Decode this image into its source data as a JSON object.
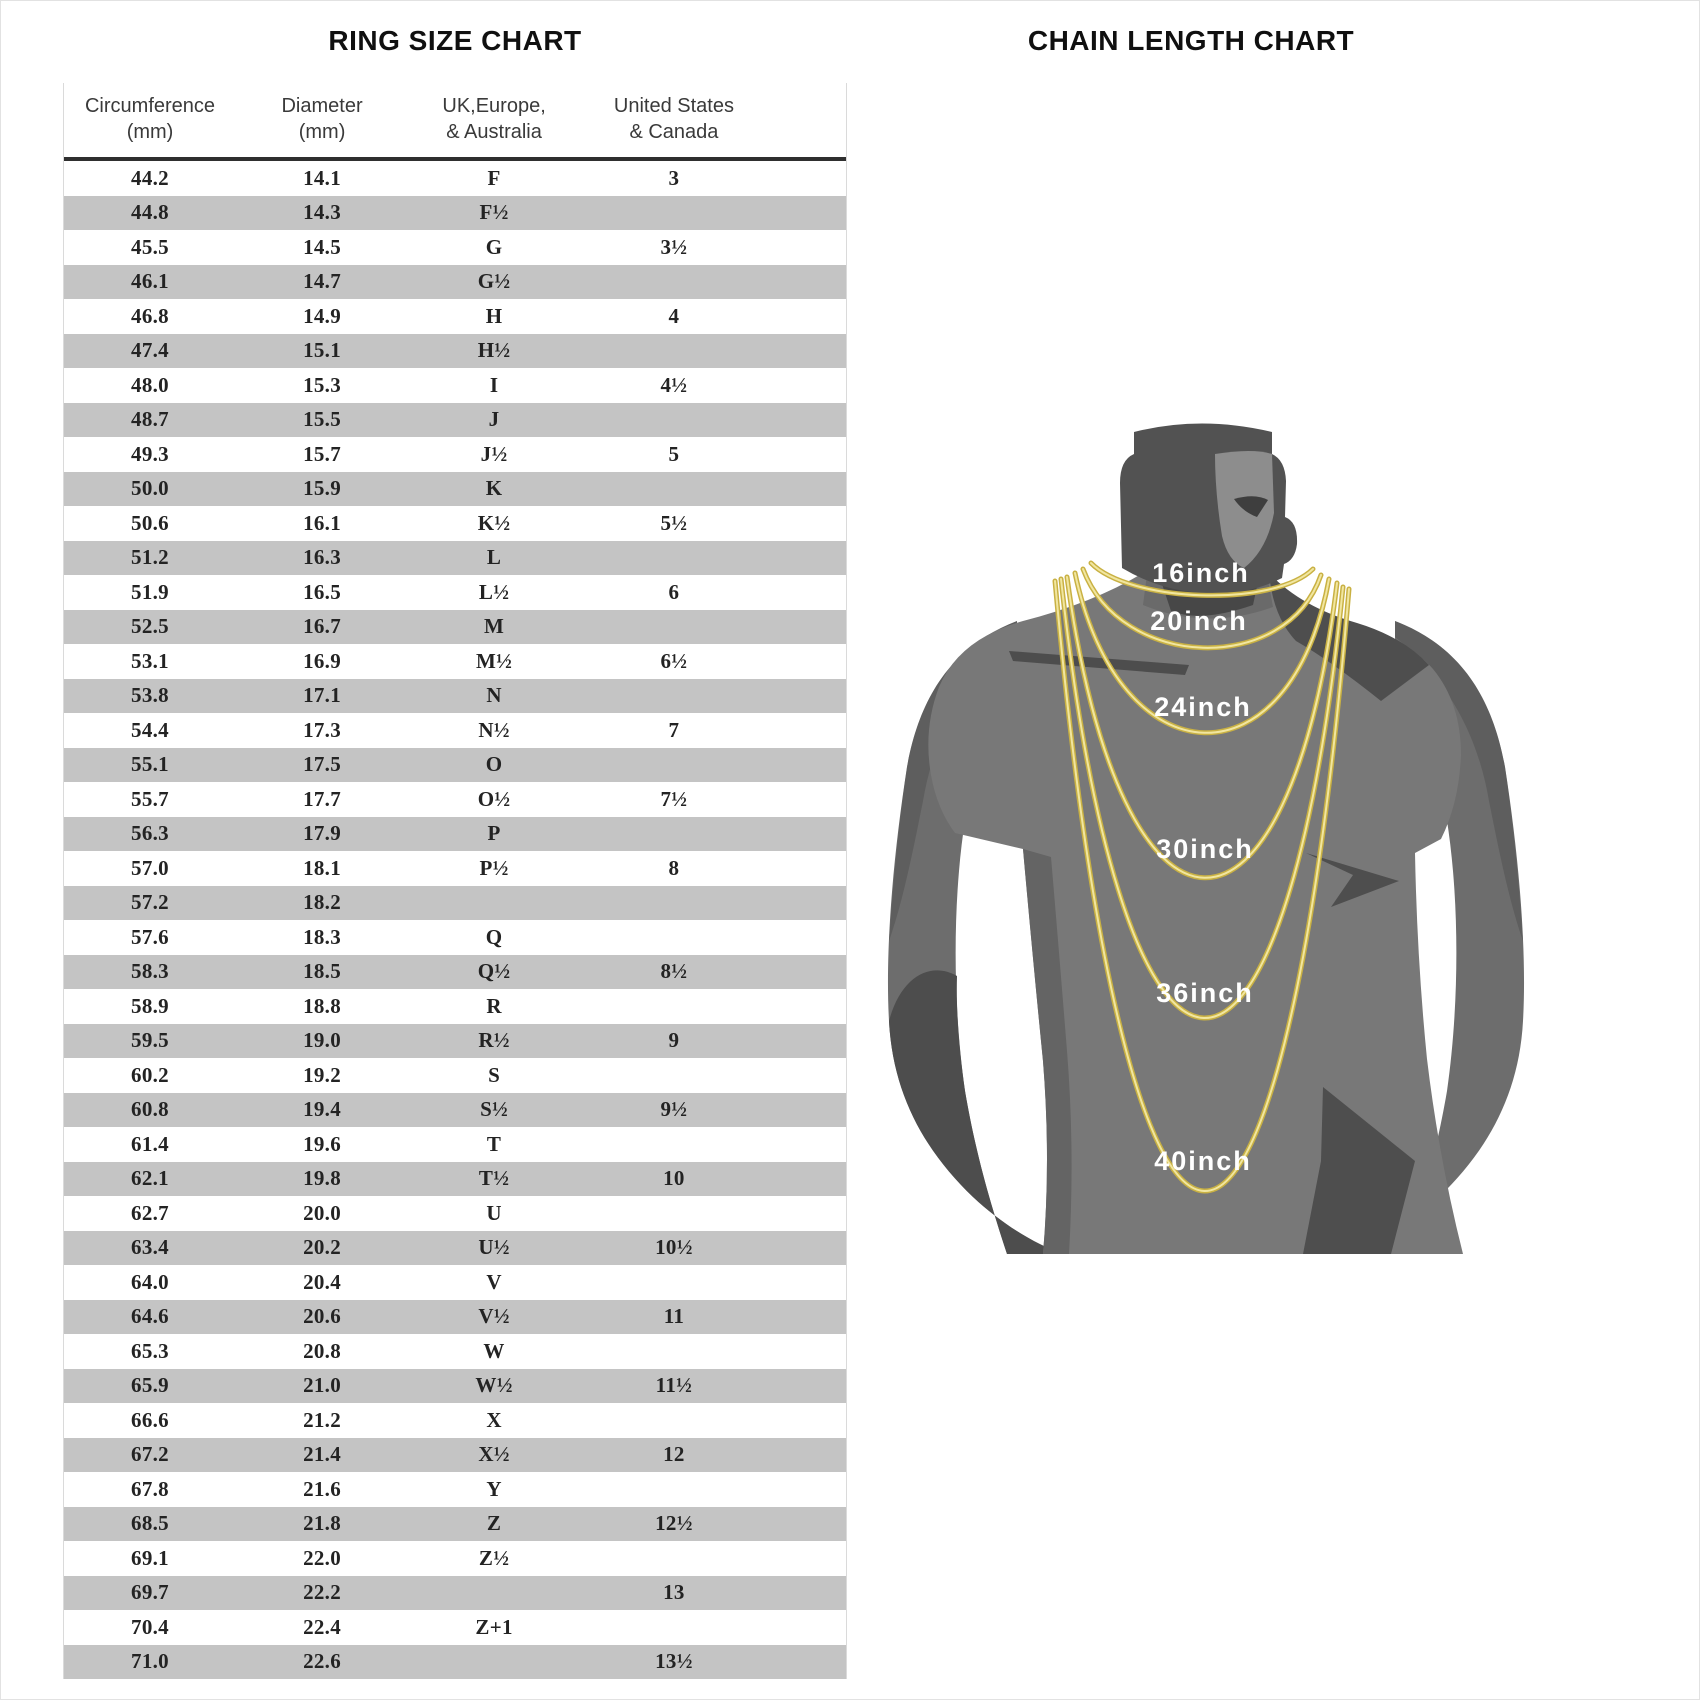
{
  "chart_data": [
    {
      "type": "table",
      "title": "RING SIZE CHART",
      "columns": [
        {
          "line1": "Circumference",
          "line2": "(mm)"
        },
        {
          "line1": "Diameter",
          "line2": "(mm)"
        },
        {
          "line1": "UK,Europe,",
          "line2": "& Australia"
        },
        {
          "line1": "United States",
          "line2": "& Canada"
        }
      ],
      "rows": [
        [
          "44.2",
          "14.1",
          "F",
          "3"
        ],
        [
          "44.8",
          "14.3",
          "F½",
          ""
        ],
        [
          "45.5",
          "14.5",
          "G",
          "3½"
        ],
        [
          "46.1",
          "14.7",
          "G½",
          ""
        ],
        [
          "46.8",
          "14.9",
          "H",
          "4"
        ],
        [
          "47.4",
          "15.1",
          "H½",
          ""
        ],
        [
          "48.0",
          "15.3",
          "I",
          "4½"
        ],
        [
          "48.7",
          "15.5",
          "J",
          ""
        ],
        [
          "49.3",
          "15.7",
          "J½",
          "5"
        ],
        [
          "50.0",
          "15.9",
          "K",
          ""
        ],
        [
          "50.6",
          "16.1",
          "K½",
          "5½"
        ],
        [
          "51.2",
          "16.3",
          "L",
          ""
        ],
        [
          "51.9",
          "16.5",
          "L½",
          "6"
        ],
        [
          "52.5",
          "16.7",
          "M",
          ""
        ],
        [
          "53.1",
          "16.9",
          "M½",
          "6½"
        ],
        [
          "53.8",
          "17.1",
          "N",
          ""
        ],
        [
          "54.4",
          "17.3",
          "N½",
          "7"
        ],
        [
          "55.1",
          "17.5",
          "O",
          ""
        ],
        [
          "55.7",
          "17.7",
          "O½",
          "7½"
        ],
        [
          "56.3",
          "17.9",
          "P",
          ""
        ],
        [
          "57.0",
          "18.1",
          "P½",
          "8"
        ],
        [
          "57.2",
          "18.2",
          "",
          ""
        ],
        [
          "57.6",
          "18.3",
          "Q",
          ""
        ],
        [
          "58.3",
          "18.5",
          "Q½",
          "8½"
        ],
        [
          "58.9",
          "18.8",
          "R",
          ""
        ],
        [
          "59.5",
          "19.0",
          "R½",
          "9"
        ],
        [
          "60.2",
          "19.2",
          "S",
          ""
        ],
        [
          "60.8",
          "19.4",
          "S½",
          "9½"
        ],
        [
          "61.4",
          "19.6",
          "T",
          ""
        ],
        [
          "62.1",
          "19.8",
          "T½",
          "10"
        ],
        [
          "62.7",
          "20.0",
          "U",
          ""
        ],
        [
          "63.4",
          "20.2",
          "U½",
          "10½"
        ],
        [
          "64.0",
          "20.4",
          "V",
          ""
        ],
        [
          "64.6",
          "20.6",
          "V½",
          "11"
        ],
        [
          "65.3",
          "20.8",
          "W",
          ""
        ],
        [
          "65.9",
          "21.0",
          "W½",
          "11½"
        ],
        [
          "66.6",
          "21.2",
          "X",
          ""
        ],
        [
          "67.2",
          "21.4",
          "X½",
          "12"
        ],
        [
          "67.8",
          "21.6",
          "Y",
          ""
        ],
        [
          "68.5",
          "21.8",
          "Z",
          "12½"
        ],
        [
          "69.1",
          "22.0",
          "Z½",
          ""
        ],
        [
          "69.7",
          "22.2",
          "",
          "13"
        ],
        [
          "70.4",
          "22.4",
          "Z+1",
          ""
        ],
        [
          "71.0",
          "22.6",
          "",
          "13½"
        ]
      ]
    },
    {
      "type": "diagram",
      "title": "CHAIN LENGTH CHART",
      "labels": [
        "16inch",
        "20inch",
        "24inch",
        "30inch",
        "36inch",
        "40inch"
      ],
      "chain_lengths_inches": [
        16,
        20,
        24,
        30,
        36,
        40
      ]
    }
  ],
  "colors": {
    "stripe_gray": "#c4c4c4",
    "rule_dark": "#2f2f2f",
    "silhouette_gray": "#787878",
    "silhouette_arm": "#6d6d6d",
    "silhouette_dark": "#4d4d4d",
    "silhouette_head": "#525252",
    "silhouette_face_light": "#8d8d8d",
    "chain_gold": "#c9b143",
    "chain_gold_light": "#f1e6a0",
    "label_white": "#ffffff"
  }
}
